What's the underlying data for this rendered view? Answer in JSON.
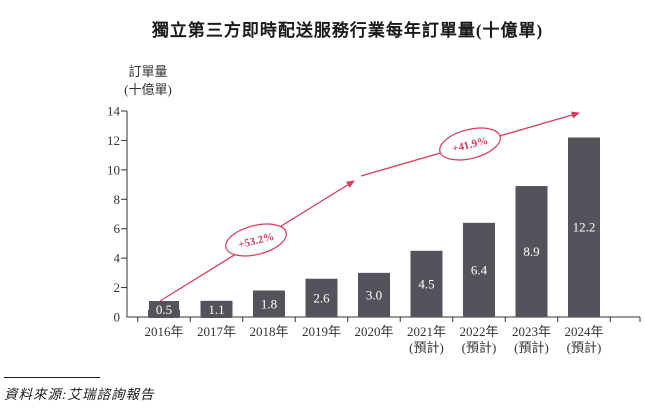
{
  "title": "獨立第三方即時配送服務行業每年訂單量(十億單)",
  "y_axis": {
    "line1": "訂單量",
    "line2": "(十億單)"
  },
  "source": {
    "label": "資料來源:艾瑞諮詢報告"
  },
  "colors": {
    "bar": "#54535c",
    "accent_red": "#d53c5c",
    "axis_text": "#333333",
    "bar_label": "#ffffff",
    "title_text": "#1a1a1a"
  },
  "chart_data": {
    "type": "bar",
    "title": "獨立第三方即時配送服務行業每年訂單量(十億單)",
    "ylabel": "訂單量(十億單)",
    "xlabel": "",
    "categories": [
      "2016年",
      "2017年",
      "2018年",
      "2019年",
      "2020年",
      "2021年(預計)",
      "2022年(預計)",
      "2023年(預計)",
      "2024年(預計)"
    ],
    "x_labels": [
      {
        "line1": "2016年",
        "line2": ""
      },
      {
        "line1": "2017年",
        "line2": ""
      },
      {
        "line1": "2018年",
        "line2": ""
      },
      {
        "line1": "2019年",
        "line2": ""
      },
      {
        "line1": "2020年",
        "line2": ""
      },
      {
        "line1": "2021年",
        "line2": "(預計)"
      },
      {
        "line1": "2022年",
        "line2": "(預計)"
      },
      {
        "line1": "2023年",
        "line2": "(預計)"
      },
      {
        "line1": "2024年",
        "line2": "(預計)"
      }
    ],
    "values": [
      0.5,
      1.1,
      1.8,
      2.6,
      3.0,
      4.5,
      6.4,
      8.9,
      12.2
    ],
    "ylim": [
      0,
      14
    ],
    "ytick_step": 2,
    "grid": false,
    "legend": "none",
    "annotations": [
      {
        "label": "+53.2%"
      },
      {
        "label": "+41.9%"
      }
    ]
  }
}
